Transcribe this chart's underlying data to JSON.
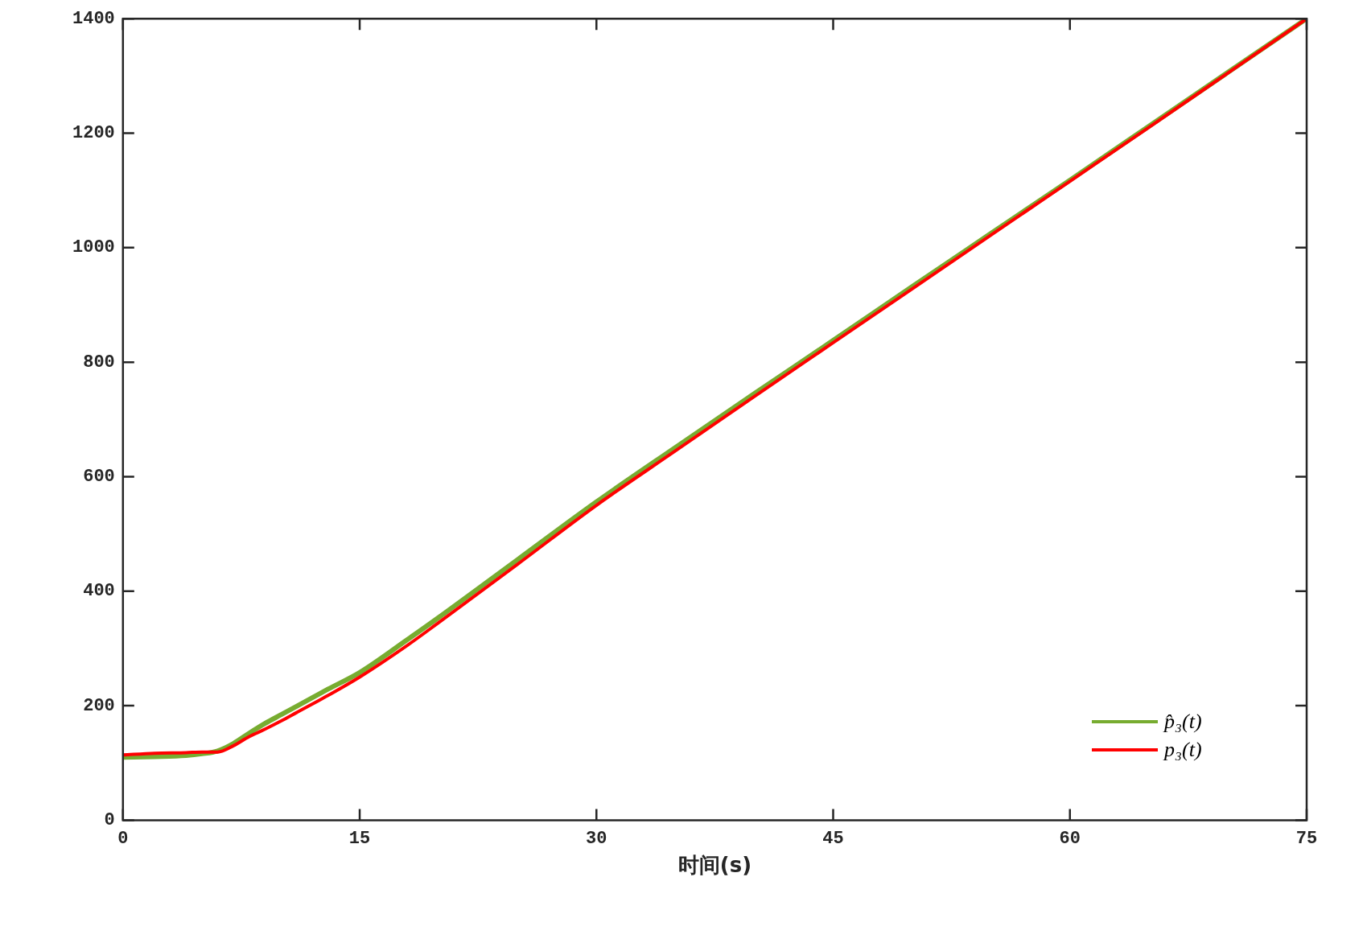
{
  "chart_data": {
    "type": "line",
    "xlabel": "时间(s)",
    "x": [
      0,
      2,
      4,
      5,
      6,
      7,
      8,
      9,
      10,
      11,
      12,
      13,
      15,
      18,
      20,
      25,
      30,
      35,
      40,
      45,
      50,
      55,
      60,
      65,
      70,
      75
    ],
    "series": [
      {
        "name": "p̂₃(t)",
        "color": "#77ac30",
        "values": [
          110,
          111,
          113,
          116,
          121,
          134,
          152,
          169,
          184,
          199,
          214,
          229,
          258,
          315,
          354,
          455,
          556,
          651,
          745,
          838,
          932,
          1025,
          1118,
          1212,
          1306,
          1400
        ]
      },
      {
        "name": "p₃(t)",
        "color": "#ff0000",
        "values": [
          114,
          117,
          118,
          119,
          119,
          130,
          146,
          159,
          173,
          188,
          203,
          218,
          250,
          305,
          345,
          447,
          550,
          645,
          740,
          834,
          928,
          1022,
          1116,
          1210,
          1305,
          1400
        ]
      }
    ],
    "xlim": [
      0,
      75
    ],
    "xticks": [
      0,
      15,
      30,
      45,
      60,
      75
    ],
    "ylim": [
      0,
      1400
    ],
    "yticks": [
      0,
      200,
      400,
      600,
      800,
      1000,
      1200,
      1400
    ],
    "grid": false,
    "legend": "bottom right",
    "marker": "none",
    "line_style": "solid"
  }
}
